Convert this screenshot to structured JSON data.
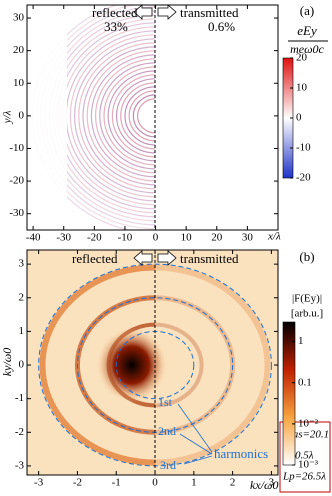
{
  "chart_data": [
    {
      "type": "heatmap",
      "panel": "(a)",
      "xlabel": "x/λ",
      "ylabel": "y/λ",
      "xlim": [
        -42,
        40
      ],
      "ylim": [
        -35,
        34
      ],
      "xticks": [
        -40,
        -30,
        -20,
        -10,
        0,
        10,
        20,
        30
      ],
      "yticks": [
        -30,
        -20,
        -10,
        0,
        10,
        20,
        30
      ],
      "left_label": "reflected",
      "left_value": "33%",
      "right_label": "transmitted",
      "right_value": "0.6%",
      "colorbar": {
        "label_top": "eEy",
        "label_bottom": "meω0c",
        "log": false,
        "lim": [
          -20,
          20
        ],
        "ticks": [
          -20,
          -10,
          0,
          10,
          20
        ],
        "colors": [
          "#2033c8",
          "#ffffff",
          "#e01010"
        ]
      }
    },
    {
      "type": "heatmap",
      "panel": "(b)",
      "xlabel": "kx/ω0",
      "ylabel": "ky/ω0",
      "xlim": [
        -3.3,
        3.17
      ],
      "ylim": [
        -3.27,
        3.42
      ],
      "xticks": [
        -3,
        -2,
        -1,
        0,
        1,
        2,
        3
      ],
      "yticks": [
        -3,
        -2,
        -1,
        0,
        1,
        2,
        3
      ],
      "left_label": "reflected",
      "right_label": "transmitted",
      "harmonic_labels": [
        "1st",
        "2nd",
        "3rd"
      ],
      "harmonics_label": "harmonics",
      "parameters": [
        "ℰlas=20.1",
        "ℓ=0.5λ",
        "Lp=26.5λ"
      ],
      "colorbar": {
        "label_top": "|F(Ey)|",
        "label_bottom": "[arb.u.]",
        "log": true,
        "lim": [
          0.001,
          3
        ],
        "ticks": [
          {
            "value": 0.001,
            "label": "10⁻³"
          },
          {
            "value": 0.01,
            "label": "10⁻²"
          },
          0.1,
          1
        ],
        "colors": [
          "#ffffff",
          "#f7a440",
          "#c02000",
          "#000000"
        ]
      }
    }
  ]
}
